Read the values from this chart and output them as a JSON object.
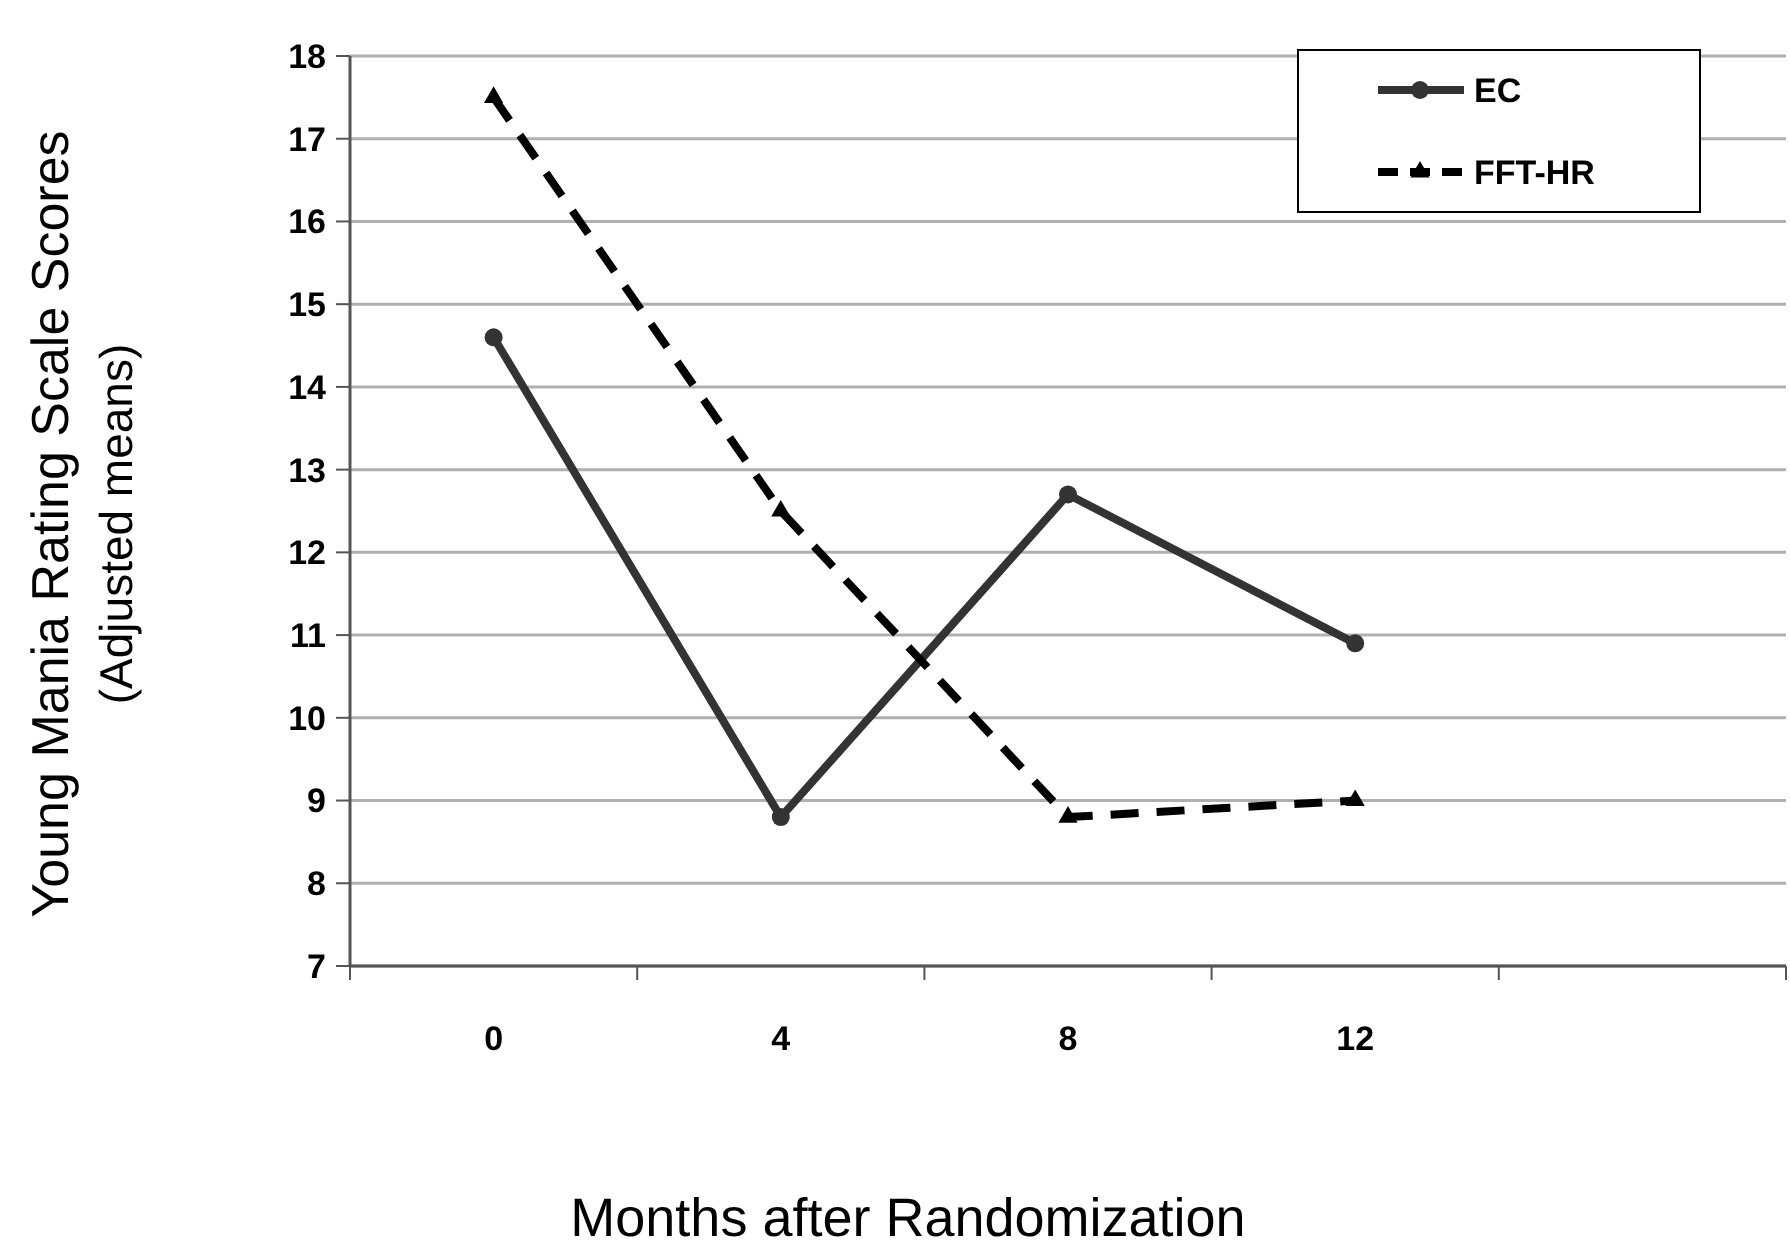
{
  "chart_data": {
    "type": "line",
    "xlabel": "Months after Randomization",
    "ylabel": "Young Mania Rating Scale Scores\n(Adjusted means)",
    "categories": [
      "0",
      "4",
      "8",
      "12",
      null
    ],
    "series": [
      {
        "name": "EC",
        "color": "#333333",
        "values": [
          14.6,
          8.8,
          12.7,
          10.9,
          null
        ],
        "marker": "circle",
        "line_style": "solid"
      },
      {
        "name": "FFT-HR",
        "color": "#000000",
        "values": [
          17.5,
          12.5,
          8.8,
          9.0,
          null
        ],
        "marker": "triangle",
        "line_style": "dashed"
      }
    ],
    "ylim": [
      7,
      18
    ],
    "yticks": [
      7,
      8,
      9,
      10,
      11,
      12,
      13,
      14,
      15,
      16,
      17,
      18
    ],
    "grid": "y",
    "legend": "top right"
  }
}
